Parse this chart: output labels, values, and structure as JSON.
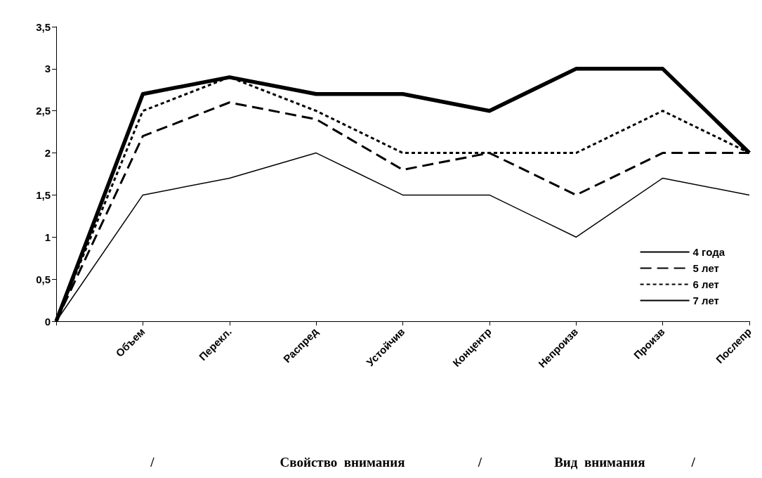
{
  "chart_data": {
    "type": "line",
    "categories": [
      null,
      "Объем",
      "Перекл.",
      "Распред",
      "Устойчив",
      "Концентр",
      "Непроизв",
      "Произв",
      "Послепр"
    ],
    "series": [
      {
        "name": "4 года",
        "color": "#000000",
        "line_style": "solid",
        "values": [
          0,
          1.5,
          1.7,
          2.0,
          1.5,
          1.5,
          1.0,
          1.7,
          1.5
        ]
      },
      {
        "name": "5 лет",
        "color": "#000000",
        "line_style": "dashed",
        "values": [
          0,
          2.2,
          2.6,
          2.4,
          1.8,
          2.0,
          1.5,
          2.0,
          2.0
        ]
      },
      {
        "name": "6 лет",
        "color": "#000000",
        "line_style": "dotted",
        "values": [
          0,
          2.5,
          2.9,
          2.5,
          2.0,
          2.0,
          2.0,
          2.5,
          2.0
        ]
      },
      {
        "name": "7 лет",
        "color": "#000000",
        "line_style": "solid",
        "values": [
          0,
          2.7,
          2.9,
          2.7,
          2.7,
          2.5,
          3.0,
          3.0,
          2.0
        ]
      }
    ],
    "ylim": [
      0,
      3.5
    ],
    "yticks": [
      0,
      {
        "value": 0.5,
        "label": "0,5"
      },
      1,
      {
        "value": 1.5,
        "label": "1,5"
      },
      2,
      {
        "value": 2.5,
        "label": "2,5"
      },
      3,
      {
        "value": 3.5,
        "label": "3,5"
      }
    ],
    "grid": false,
    "legend": "bottom right",
    "marker": "none",
    "annotations": [
      "/",
      "Свойство  внимания",
      "/",
      "Вид  внимания",
      "/"
    ]
  }
}
